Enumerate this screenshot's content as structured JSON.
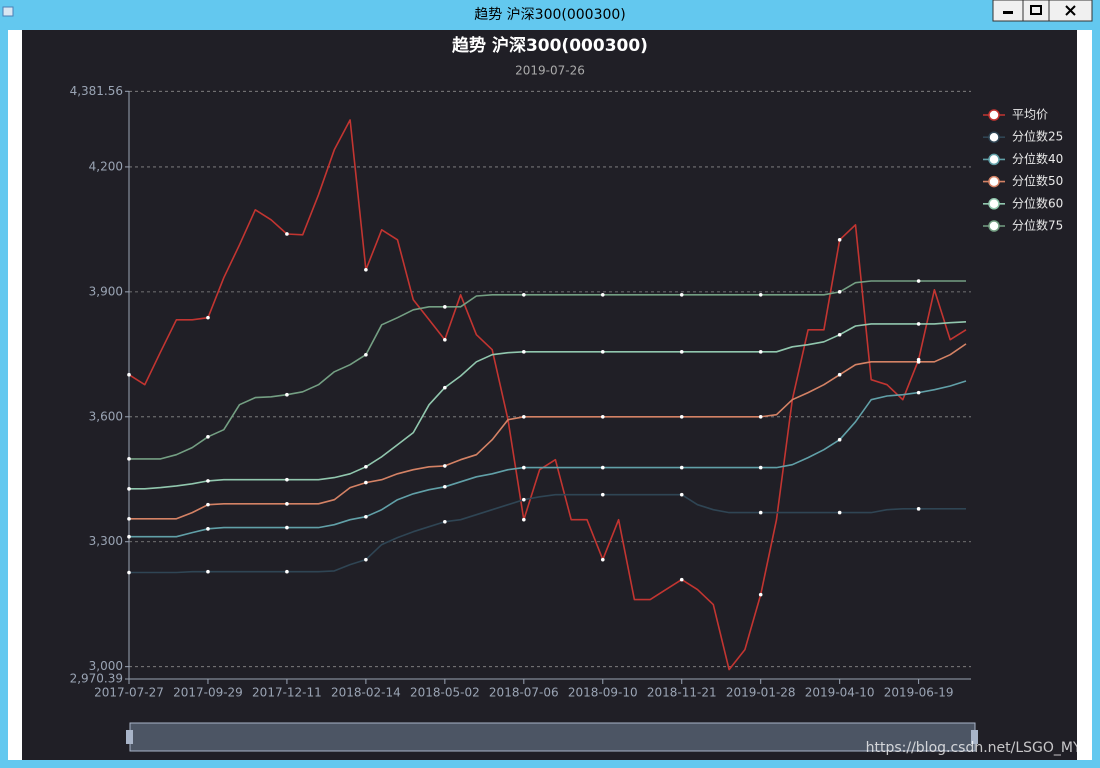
{
  "window": {
    "title": "趋势 沪深300(000300)"
  },
  "watermark": "https://blog.csdn.net/LSGO_MYP",
  "chart_data": {
    "type": "line",
    "title": "趋势 沪深300(000300)",
    "subtitle": "2019-07-26",
    "categories": [
      "2017-07-27",
      null,
      null,
      null,
      null,
      "2017-09-29",
      null,
      null,
      null,
      null,
      "2017-12-11",
      null,
      null,
      null,
      null,
      "2018-02-14",
      null,
      null,
      null,
      null,
      "2018-05-02",
      null,
      null,
      null,
      null,
      "2018-07-06",
      null,
      null,
      null,
      null,
      "2018-09-10",
      null,
      null,
      null,
      null,
      "2018-11-21",
      null,
      null,
      null,
      null,
      "2019-01-28",
      null,
      null,
      null,
      null,
      "2019-04-10",
      null,
      null,
      null,
      null,
      "2019-06-19",
      null,
      null,
      null
    ],
    "ylim": [
      2970.39,
      4381.56
    ],
    "yticks": [
      {
        "value": 2970.39,
        "label": "2,970.39"
      },
      {
        "value": 3000,
        "label": "3,000"
      },
      {
        "value": 3300,
        "label": "3,300"
      },
      {
        "value": 3600,
        "label": "3,600"
      },
      {
        "value": 3900,
        "label": "3,900"
      },
      {
        "value": 4200,
        "label": "4,200"
      },
      {
        "value": 4381.56,
        "label": "4,381.56"
      }
    ],
    "grid": true,
    "legend_position": "top-right",
    "series": [
      {
        "name": "平均价",
        "color": "#c23531",
        "values": [
          3701,
          3677,
          3756,
          3833,
          3833,
          3838,
          3934,
          4013,
          4097,
          4073,
          4039,
          4037,
          4133,
          4241,
          4313,
          3953,
          4049,
          4025,
          3881,
          3833,
          3785,
          3893,
          3797,
          3761,
          3593,
          3353,
          3473,
          3497,
          3353,
          3353,
          3257,
          3353,
          3161,
          3161,
          3185,
          3209,
          3185,
          3149,
          2993,
          3041,
          3173,
          3353,
          3641,
          3809,
          3809,
          4025,
          4061,
          3689,
          3677,
          3641,
          3737,
          3905,
          3785,
          3809
        ]
      },
      {
        "name": "分位数25",
        "color": "#2f4554",
        "values": [
          3226,
          3226,
          3226,
          3226,
          3228,
          3228,
          3228,
          3228,
          3228,
          3228,
          3228,
          3228,
          3228,
          3230,
          3245,
          3257,
          3293,
          3310,
          3324,
          3336,
          3348,
          3353,
          3365,
          3377,
          3389,
          3401,
          3408,
          3413,
          3413,
          3413,
          3413,
          3413,
          3413,
          3413,
          3413,
          3413,
          3389,
          3377,
          3370,
          3370,
          3370,
          3370,
          3370,
          3370,
          3370,
          3370,
          3370,
          3370,
          3377,
          3379,
          3379,
          3379,
          3379,
          3379
        ]
      },
      {
        "name": "分位数40",
        "color": "#61a0a8",
        "values": [
          3312,
          3312,
          3312,
          3312,
          3322,
          3331,
          3334,
          3334,
          3334,
          3334,
          3334,
          3334,
          3334,
          3341,
          3353,
          3360,
          3377,
          3401,
          3415,
          3425,
          3432,
          3444,
          3456,
          3463,
          3473,
          3478,
          3478,
          3478,
          3478,
          3478,
          3478,
          3478,
          3478,
          3478,
          3478,
          3478,
          3478,
          3478,
          3478,
          3478,
          3478,
          3478,
          3485,
          3502,
          3521,
          3545,
          3588,
          3641,
          3650,
          3653,
          3658,
          3665,
          3674,
          3686
        ]
      },
      {
        "name": "分位数50",
        "color": "#d48265",
        "values": [
          3355,
          3355,
          3355,
          3355,
          3370,
          3389,
          3391,
          3391,
          3391,
          3391,
          3391,
          3391,
          3391,
          3401,
          3430,
          3442,
          3449,
          3463,
          3473,
          3480,
          3482,
          3497,
          3509,
          3545,
          3593,
          3600,
          3600,
          3600,
          3600,
          3600,
          3600,
          3600,
          3600,
          3600,
          3600,
          3600,
          3600,
          3600,
          3600,
          3600,
          3600,
          3605,
          3641,
          3658,
          3677,
          3701,
          3725,
          3732,
          3732,
          3732,
          3732,
          3732,
          3749,
          3775
        ]
      },
      {
        "name": "分位数60",
        "color": "#91c7ae",
        "values": [
          3427,
          3427,
          3430,
          3434,
          3439,
          3446,
          3449,
          3449,
          3449,
          3449,
          3449,
          3449,
          3449,
          3454,
          3463,
          3480,
          3504,
          3533,
          3562,
          3629,
          3670,
          3698,
          3732,
          3749,
          3754,
          3756,
          3756,
          3756,
          3756,
          3756,
          3756,
          3756,
          3756,
          3756,
          3756,
          3756,
          3756,
          3756,
          3756,
          3756,
          3756,
          3756,
          3768,
          3773,
          3780,
          3797,
          3818,
          3823,
          3823,
          3823,
          3823,
          3823,
          3826,
          3828
        ]
      },
      {
        "name": "分位数75",
        "color": "#749f83",
        "values": [
          3499,
          3499,
          3499,
          3509,
          3526,
          3552,
          3569,
          3629,
          3646,
          3648,
          3653,
          3660,
          3677,
          3708,
          3725,
          3749,
          3821,
          3838,
          3857,
          3864,
          3864,
          3864,
          3890,
          3893,
          3893,
          3893,
          3893,
          3893,
          3893,
          3893,
          3893,
          3893,
          3893,
          3893,
          3893,
          3893,
          3893,
          3893,
          3893,
          3893,
          3893,
          3893,
          3893,
          3893,
          3893,
          3900,
          3922,
          3926,
          3926,
          3926,
          3926,
          3926,
          3926,
          3926
        ]
      }
    ]
  }
}
